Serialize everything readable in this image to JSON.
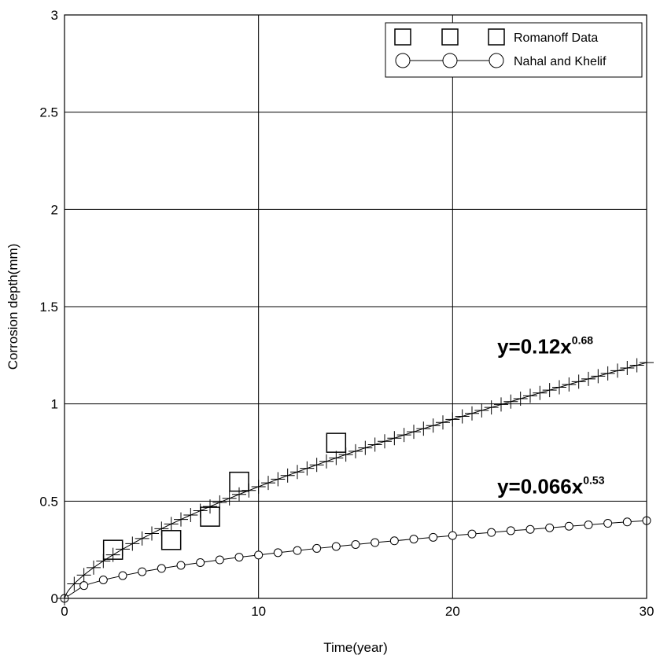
{
  "chart_data": {
    "type": "scatter",
    "title": "",
    "xlabel": "Time(year)",
    "ylabel": "Corrosion depth(mm)",
    "xlim": [
      0,
      30
    ],
    "ylim": [
      0,
      3
    ],
    "x_ticks": [
      "0",
      "10",
      "20",
      "30"
    ],
    "y_ticks": [
      "0",
      "0.5",
      "1",
      "1.5",
      "2",
      "2.5",
      "3"
    ],
    "grid": true,
    "legend_position": "top-right",
    "series": [
      {
        "name": "Romanoff Data",
        "marker": "square",
        "line": false,
        "points": [
          [
            2.5,
            0.25
          ],
          [
            5.5,
            0.3
          ],
          [
            7.5,
            0.42
          ],
          [
            9.0,
            0.6
          ],
          [
            14.0,
            0.8
          ]
        ]
      },
      {
        "name": "Nahal and Khelif",
        "marker": "circle",
        "line": true,
        "points": [
          [
            0,
            0
          ],
          [
            1,
            0.066
          ],
          [
            2,
            0.095
          ],
          [
            3,
            0.117
          ],
          [
            4,
            0.137
          ],
          [
            5,
            0.154
          ],
          [
            6,
            0.17
          ],
          [
            7,
            0.184
          ],
          [
            8,
            0.198
          ],
          [
            9,
            0.212
          ],
          [
            10,
            0.223
          ],
          [
            11,
            0.235
          ],
          [
            12,
            0.246
          ],
          [
            13,
            0.257
          ],
          [
            14,
            0.267
          ],
          [
            15,
            0.277
          ],
          [
            16,
            0.287
          ],
          [
            17,
            0.296
          ],
          [
            18,
            0.305
          ],
          [
            19,
            0.314
          ],
          [
            20,
            0.323
          ],
          [
            21,
            0.331
          ],
          [
            22,
            0.339
          ],
          [
            23,
            0.348
          ],
          [
            24,
            0.355
          ],
          [
            25,
            0.363
          ],
          [
            26,
            0.371
          ],
          [
            27,
            0.378
          ],
          [
            28,
            0.386
          ],
          [
            29,
            0.393
          ],
          [
            30,
            0.4
          ]
        ]
      },
      {
        "name": "",
        "marker": "plus",
        "line": true,
        "fit": {
          "a": 0.12,
          "b": 0.68,
          "x_from": 0,
          "x_to": 30,
          "marker_step": 0.5
        }
      }
    ],
    "annotations": [
      {
        "base": "y=0.12x",
        "sup": "0.68",
        "at": [
          22.3,
          1.26
        ]
      },
      {
        "base": "y=0.066x",
        "sup": "0.53",
        "at": [
          22.3,
          0.54
        ]
      }
    ]
  },
  "colors": {
    "line": "#000000",
    "grid": "#000000",
    "background": "#ffffff"
  }
}
